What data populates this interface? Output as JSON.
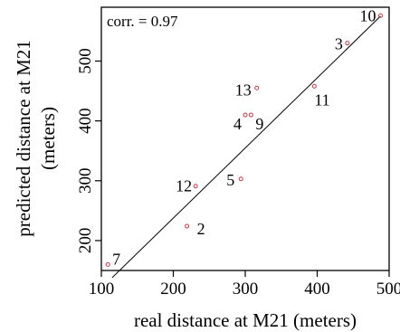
{
  "chart_data": {
    "type": "scatter",
    "xlabel": "real distance at M21 (meters)",
    "ylabel_line1": "predicted distance at M21",
    "ylabel_line2": "(meters)",
    "annotation": "corr. = 0.97",
    "xlim": [
      100,
      500
    ],
    "ylim": [
      150,
      590
    ],
    "x_ticks": [
      100,
      200,
      300,
      400,
      500
    ],
    "y_ticks": [
      200,
      300,
      400,
      500
    ],
    "grid": false,
    "marker_color": "#c23b4a",
    "line_color": "#000000",
    "fit_line": {
      "x": [
        115,
        488
      ],
      "y": [
        138,
        575
      ]
    },
    "points": [
      {
        "label": "7",
        "x": 109,
        "y": 160
      },
      {
        "label": "2",
        "x": 219,
        "y": 224
      },
      {
        "label": "12",
        "x": 231,
        "y": 291
      },
      {
        "label": "5",
        "x": 294,
        "y": 303
      },
      {
        "label": "4",
        "x": 300,
        "y": 410
      },
      {
        "label": "9",
        "x": 308,
        "y": 410
      },
      {
        "label": "13",
        "x": 316,
        "y": 455
      },
      {
        "label": "11",
        "x": 396,
        "y": 458
      },
      {
        "label": "3",
        "x": 442,
        "y": 530
      },
      {
        "label": "10",
        "x": 488,
        "y": 576
      }
    ]
  }
}
